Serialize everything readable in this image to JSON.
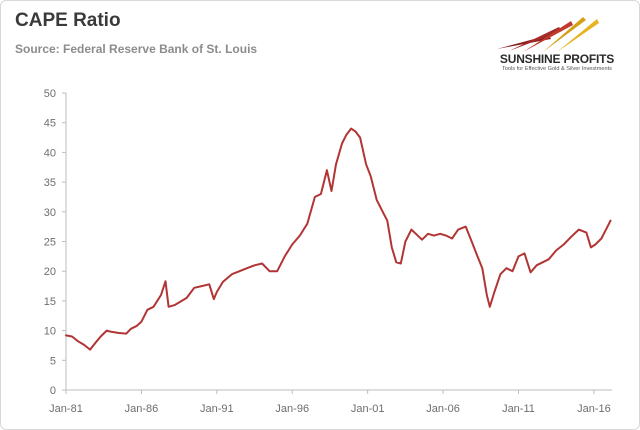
{
  "chart_data": {
    "type": "line",
    "title": "CAPE Ratio",
    "subtitle": "Source: Federal Reserve Bank of St. Louis",
    "xlabel": "",
    "ylabel": "",
    "x_start": 1981,
    "x_end": 2017.2,
    "ylim": [
      0,
      50
    ],
    "y_ticks": [
      0,
      5,
      10,
      15,
      20,
      25,
      30,
      35,
      40,
      45,
      50
    ],
    "x_ticks": [
      {
        "label": "Jan-81",
        "value": 1981
      },
      {
        "label": "Jan-86",
        "value": 1986
      },
      {
        "label": "Jan-91",
        "value": 1991
      },
      {
        "label": "Jan-96",
        "value": 1996
      },
      {
        "label": "Jan-01",
        "value": 2001
      },
      {
        "label": "Jan-06",
        "value": 2006
      },
      {
        "label": "Jan-11",
        "value": 2011
      },
      {
        "label": "Jan-16",
        "value": 2016
      }
    ],
    "grid": false,
    "line_color": "#b23535",
    "series": [
      {
        "name": "CAPE Ratio",
        "points": [
          [
            1981.0,
            9.2
          ],
          [
            1981.4,
            9.0
          ],
          [
            1981.8,
            8.2
          ],
          [
            1982.2,
            7.6
          ],
          [
            1982.6,
            6.8
          ],
          [
            1982.9,
            7.8
          ],
          [
            1983.3,
            9.0
          ],
          [
            1983.7,
            10.0
          ],
          [
            1984.0,
            9.8
          ],
          [
            1984.5,
            9.6
          ],
          [
            1985.0,
            9.5
          ],
          [
            1985.3,
            10.3
          ],
          [
            1985.7,
            10.8
          ],
          [
            1986.0,
            11.5
          ],
          [
            1986.4,
            13.5
          ],
          [
            1986.8,
            14.0
          ],
          [
            1987.3,
            16.0
          ],
          [
            1987.6,
            18.3
          ],
          [
            1987.8,
            14.0
          ],
          [
            1988.2,
            14.3
          ],
          [
            1988.6,
            14.9
          ],
          [
            1989.0,
            15.5
          ],
          [
            1989.5,
            17.2
          ],
          [
            1990.0,
            17.5
          ],
          [
            1990.5,
            17.8
          ],
          [
            1990.8,
            15.3
          ],
          [
            1991.0,
            16.5
          ],
          [
            1991.4,
            18.2
          ],
          [
            1992.0,
            19.5
          ],
          [
            1992.5,
            20.0
          ],
          [
            1993.0,
            20.5
          ],
          [
            1993.5,
            21.0
          ],
          [
            1994.0,
            21.3
          ],
          [
            1994.5,
            20.0
          ],
          [
            1995.0,
            20.0
          ],
          [
            1995.5,
            22.5
          ],
          [
            1996.0,
            24.5
          ],
          [
            1996.5,
            26.0
          ],
          [
            1997.0,
            28.0
          ],
          [
            1997.5,
            32.5
          ],
          [
            1997.9,
            33.0
          ],
          [
            1998.3,
            37.0
          ],
          [
            1998.6,
            33.5
          ],
          [
            1998.9,
            38.0
          ],
          [
            1999.3,
            41.5
          ],
          [
            1999.6,
            43.0
          ],
          [
            1999.9,
            44.0
          ],
          [
            2000.2,
            43.5
          ],
          [
            2000.5,
            42.5
          ],
          [
            2000.9,
            38.0
          ],
          [
            2001.2,
            36.0
          ],
          [
            2001.6,
            32.0
          ],
          [
            2001.9,
            30.5
          ],
          [
            2002.3,
            28.5
          ],
          [
            2002.6,
            24.0
          ],
          [
            2002.9,
            21.5
          ],
          [
            2003.2,
            21.3
          ],
          [
            2003.5,
            25.0
          ],
          [
            2003.9,
            27.0
          ],
          [
            2004.2,
            26.3
          ],
          [
            2004.6,
            25.3
          ],
          [
            2005.0,
            26.3
          ],
          [
            2005.4,
            26.0
          ],
          [
            2005.8,
            26.3
          ],
          [
            2006.2,
            26.0
          ],
          [
            2006.6,
            25.5
          ],
          [
            2007.0,
            27.0
          ],
          [
            2007.5,
            27.5
          ],
          [
            2007.9,
            25.0
          ],
          [
            2008.2,
            23.0
          ],
          [
            2008.6,
            20.5
          ],
          [
            2008.9,
            16.0
          ],
          [
            2009.1,
            14.0
          ],
          [
            2009.4,
            16.5
          ],
          [
            2009.8,
            19.5
          ],
          [
            2010.2,
            20.5
          ],
          [
            2010.6,
            20.0
          ],
          [
            2011.0,
            22.5
          ],
          [
            2011.4,
            23.0
          ],
          [
            2011.8,
            19.8
          ],
          [
            2012.2,
            21.0
          ],
          [
            2012.6,
            21.5
          ],
          [
            2013.0,
            22.0
          ],
          [
            2013.5,
            23.5
          ],
          [
            2014.0,
            24.5
          ],
          [
            2014.5,
            25.8
          ],
          [
            2015.0,
            27.0
          ],
          [
            2015.5,
            26.5
          ],
          [
            2015.8,
            24.0
          ],
          [
            2016.1,
            24.5
          ],
          [
            2016.5,
            25.5
          ],
          [
            2016.8,
            27.0
          ],
          [
            2017.1,
            28.5
          ]
        ]
      }
    ]
  },
  "brand": {
    "name": "SUNSHINE PROFITS",
    "tagline": "Tools for Effective Gold & Silver Investments"
  }
}
